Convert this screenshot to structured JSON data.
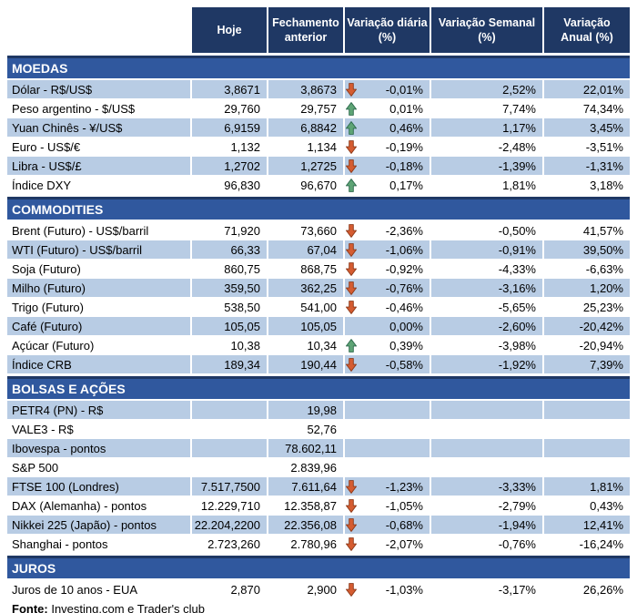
{
  "chart_data": {
    "type": "table",
    "columns": [
      "Hoje",
      "Fechamento\nanterior",
      "Variação diária\n(%)",
      "Variação Semanal\n(%)",
      "Variação\nAnual (%)"
    ],
    "sections": [
      {
        "key": "moedas",
        "title": "MOEDAS",
        "rows": [
          {
            "label": "Dólar - R$/US$",
            "hoje": "3,8671",
            "fechamento": "3,8673",
            "arrow": "down",
            "var_diaria": "-0,01%",
            "var_semanal": "2,52%",
            "var_anual": "22,01%",
            "shaded": true
          },
          {
            "label": "Peso argentino - $/US$",
            "hoje": "29,760",
            "fechamento": "29,757",
            "arrow": "up",
            "var_diaria": "0,01%",
            "var_semanal": "7,74%",
            "var_anual": "74,34%",
            "shaded": false
          },
          {
            "label": "Yuan Chinês - ¥/US$",
            "hoje": "6,9159",
            "fechamento": "6,8842",
            "arrow": "up",
            "var_diaria": "0,46%",
            "var_semanal": "1,17%",
            "var_anual": "3,45%",
            "shaded": true
          },
          {
            "label": "Euro - US$/€",
            "hoje": "1,132",
            "fechamento": "1,134",
            "arrow": "down",
            "var_diaria": "-0,19%",
            "var_semanal": "-2,48%",
            "var_anual": "-3,51%",
            "shaded": false
          },
          {
            "label": "Libra - US$/£",
            "hoje": "1,2702",
            "fechamento": "1,2725",
            "arrow": "down",
            "var_diaria": "-0,18%",
            "var_semanal": "-1,39%",
            "var_anual": "-1,31%",
            "shaded": true
          },
          {
            "label": "Índice DXY",
            "hoje": "96,830",
            "fechamento": "96,670",
            "arrow": "up",
            "var_diaria": "0,17%",
            "var_semanal": "1,81%",
            "var_anual": "3,18%",
            "shaded": false
          }
        ]
      },
      {
        "key": "commodities",
        "title": "COMMODITIES",
        "rows": [
          {
            "label": "Brent (Futuro) - US$/barril",
            "hoje": "71,920",
            "fechamento": "73,660",
            "arrow": "down",
            "var_diaria": "-2,36%",
            "var_semanal": "-0,50%",
            "var_anual": "41,57%",
            "shaded": false
          },
          {
            "label": "WTI (Futuro) - US$/barril",
            "hoje": "66,33",
            "fechamento": "67,04",
            "arrow": "down",
            "var_diaria": "-1,06%",
            "var_semanal": "-0,91%",
            "var_anual": "39,50%",
            "shaded": true
          },
          {
            "label": "Soja (Futuro)",
            "hoje": "860,75",
            "fechamento": "868,75",
            "arrow": "down",
            "var_diaria": "-0,92%",
            "var_semanal": "-4,33%",
            "var_anual": "-6,63%",
            "shaded": false
          },
          {
            "label": "Milho (Futuro)",
            "hoje": "359,50",
            "fechamento": "362,25",
            "arrow": "down",
            "var_diaria": "-0,76%",
            "var_semanal": "-3,16%",
            "var_anual": "1,20%",
            "shaded": true
          },
          {
            "label": "Trigo (Futuro)",
            "hoje": "538,50",
            "fechamento": "541,00",
            "arrow": "down",
            "var_diaria": "-0,46%",
            "var_semanal": "-5,65%",
            "var_anual": "25,23%",
            "shaded": false
          },
          {
            "label": "Café (Futuro)",
            "hoje": "105,05",
            "fechamento": "105,05",
            "arrow": "none",
            "var_diaria": "0,00%",
            "var_semanal": "-2,60%",
            "var_anual": "-20,42%",
            "shaded": true
          },
          {
            "label": "Açúcar (Futuro)",
            "hoje": "10,38",
            "fechamento": "10,34",
            "arrow": "up",
            "var_diaria": "0,39%",
            "var_semanal": "-3,98%",
            "var_anual": "-20,94%",
            "shaded": false
          },
          {
            "label": "Índice CRB",
            "hoje": "189,34",
            "fechamento": "190,44",
            "arrow": "down",
            "var_diaria": "-0,58%",
            "var_semanal": "-1,92%",
            "var_anual": "7,39%",
            "shaded": true
          }
        ]
      },
      {
        "key": "bolsas-e-acoes",
        "title": "BOLSAS E AÇÕES",
        "rows": [
          {
            "label": "PETR4 (PN) - R$",
            "hoje": "",
            "fechamento": "19,98",
            "arrow": "none",
            "var_diaria": "",
            "var_semanal": "",
            "var_anual": "",
            "shaded": true
          },
          {
            "label": "VALE3 - R$",
            "hoje": "",
            "fechamento": "52,76",
            "arrow": "none",
            "var_diaria": "",
            "var_semanal": "",
            "var_anual": "",
            "shaded": false
          },
          {
            "label": "Ibovespa - pontos",
            "hoje": "",
            "fechamento": "78.602,11",
            "arrow": "none",
            "var_diaria": "",
            "var_semanal": "",
            "var_anual": "",
            "shaded": true
          },
          {
            "label": "S&P 500",
            "hoje": "",
            "fechamento": "2.839,96",
            "arrow": "none",
            "var_diaria": "",
            "var_semanal": "",
            "var_anual": "",
            "shaded": false
          },
          {
            "label": "FTSE 100 (Londres)",
            "hoje": "7.517,7500",
            "fechamento": "7.611,64",
            "arrow": "down",
            "var_diaria": "-1,23%",
            "var_semanal": "-3,33%",
            "var_anual": "1,81%",
            "shaded": true
          },
          {
            "label": "DAX (Alemanha) - pontos",
            "hoje": "12.229,710",
            "fechamento": "12.358,87",
            "arrow": "down",
            "var_diaria": "-1,05%",
            "var_semanal": "-2,79%",
            "var_anual": "0,43%",
            "shaded": false
          },
          {
            "label": "Nikkei 225 (Japão) - pontos",
            "hoje": "22.204,2200",
            "fechamento": "22.356,08",
            "arrow": "down",
            "var_diaria": "-0,68%",
            "var_semanal": "-1,94%",
            "var_anual": "12,41%",
            "shaded": true
          },
          {
            "label": "Shanghai - pontos",
            "hoje": "2.723,260",
            "fechamento": "2.780,96",
            "arrow": "down",
            "var_diaria": "-2,07%",
            "var_semanal": "-0,76%",
            "var_anual": "-16,24%",
            "shaded": false
          }
        ]
      },
      {
        "key": "juros",
        "title": "JUROS",
        "rows": [
          {
            "label": "Juros de 10 anos - EUA",
            "hoje": "2,870",
            "fechamento": "2,900",
            "arrow": "down",
            "var_diaria": "-1,03%",
            "var_semanal": "-3,17%",
            "var_anual": "26,26%",
            "shaded": false
          }
        ]
      }
    ],
    "source_label": "Fonte:",
    "source_text": "Investing.com e Trader's club"
  },
  "colors": {
    "header_bg": "#1F3864",
    "section_bg": "#30589E",
    "row_shaded": "#B8CCE4",
    "row_plain": "#FFFFFF",
    "up": "#5EA475",
    "up_border": "#2E6B4E",
    "down": "#D55C31",
    "down_border": "#8E3B1B",
    "text": "#000000"
  }
}
